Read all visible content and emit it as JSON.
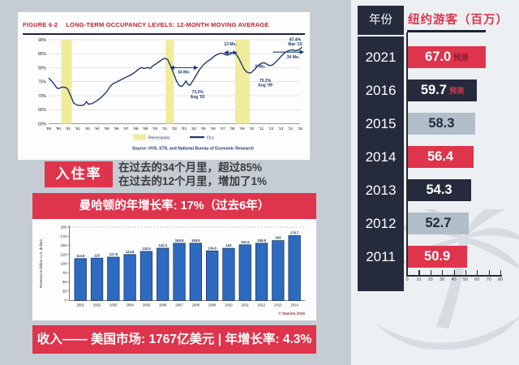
{
  "colors": {
    "red": "#de344c",
    "navy": "#252a3c",
    "gray": "#b0bfc9",
    "blue_bar": "#2e6abf",
    "blue_bar_border": "#173a66",
    "line_navy": "#1d3a70",
    "band_yellow": "#f1ec9b",
    "title_red": "#c41f2e",
    "bg_left": "#c6ccd4",
    "bg_right": "#edf0f3"
  },
  "sections": {
    "occupancy": {
      "badge": "入住率",
      "line1": "在过去的34个月里，超过85%",
      "line2": "在过去的12个月里，增加了1%"
    },
    "manhattan_banner": "曼哈顿的年增长率: 17%（过去6年）",
    "revenue_banner": "收入—— 美国市场: 1767亿美元 | 年增长率: 4.3%"
  },
  "chart_data": [
    {
      "id": "occupancy_line",
      "type": "line",
      "figure_label": "FIGURE 6-2",
      "title": "LONG-TERM OCCUPANCY LEVELS: 12-MONTH MOVING AVERAGE",
      "ylim": [
        60,
        90
      ],
      "yticks": [
        90,
        85,
        80,
        75,
        70,
        65,
        60
      ],
      "x_tick_labels": [
        "'89",
        "'90",
        "'91",
        "'92",
        "'93",
        "'94",
        "'95",
        "'96",
        "'97",
        "'98",
        "'99",
        "'00",
        "'01",
        "'02",
        "'03",
        "'04",
        "'05",
        "'06",
        "'07",
        "'08",
        "'09",
        "'10",
        "'11",
        "'12",
        "'13",
        "'14",
        "'15"
      ],
      "legend": {
        "recession_label": "Recessions",
        "line_label": "Occ"
      },
      "source": "Source: HVS, STR, and National Bureau of Economic Research",
      "recessions": [
        [
          1990.3,
          1991.4
        ],
        [
          2001.1,
          2001.95
        ],
        [
          2008.3,
          2009.8
        ]
      ],
      "series": [
        {
          "name": "Occ",
          "points": [
            [
              1989.0,
              76.3
            ],
            [
              1989.4,
              74.9
            ],
            [
              1989.8,
              73.0
            ],
            [
              1990.0,
              72.5
            ],
            [
              1990.4,
              73.1
            ],
            [
              1990.8,
              72.9
            ],
            [
              1991.0,
              72.2
            ],
            [
              1991.3,
              69.8
            ],
            [
              1991.6,
              67.3
            ],
            [
              1992.0,
              66.6
            ],
            [
              1992.4,
              66.5
            ],
            [
              1992.7,
              66.8
            ],
            [
              1992.9,
              67.9
            ],
            [
              1993.1,
              67.0
            ],
            [
              1993.5,
              67.2
            ],
            [
              1994.0,
              68.2
            ],
            [
              1994.5,
              69.6
            ],
            [
              1995.0,
              71.4
            ],
            [
              1995.3,
              73.0
            ],
            [
              1995.6,
              74.2
            ],
            [
              1996.0,
              74.8
            ],
            [
              1996.5,
              75.7
            ],
            [
              1997.0,
              76.6
            ],
            [
              1997.5,
              77.4
            ],
            [
              1998.0,
              78.6
            ],
            [
              1998.3,
              79.5
            ],
            [
              1998.6,
              80.1
            ],
            [
              1998.9,
              79.7
            ],
            [
              1999.2,
              80.1
            ],
            [
              1999.5,
              79.8
            ],
            [
              1999.8,
              80.7
            ],
            [
              2000.2,
              81.6
            ],
            [
              2000.6,
              82.6
            ],
            [
              2001.0,
              83.4
            ],
            [
              2001.3,
              83.0
            ],
            [
              2001.6,
              80.8
            ],
            [
              2001.9,
              78.2
            ],
            [
              2002.2,
              75.5
            ],
            [
              2002.5,
              73.6
            ],
            [
              2002.8,
              73.3
            ],
            [
              2003.0,
              74.2
            ],
            [
              2003.2,
              75.3
            ],
            [
              2003.4,
              74.1
            ],
            [
              2003.6,
              73.7
            ],
            [
              2003.9,
              75.2
            ],
            [
              2004.2,
              77.0
            ],
            [
              2004.6,
              79.3
            ],
            [
              2005.0,
              81.0
            ],
            [
              2005.4,
              82.2
            ],
            [
              2005.8,
              83.1
            ],
            [
              2006.2,
              84.3
            ],
            [
              2006.6,
              85.0
            ],
            [
              2006.9,
              85.2
            ],
            [
              2007.2,
              84.8
            ],
            [
              2007.5,
              84.5
            ],
            [
              2007.8,
              84.9
            ],
            [
              2008.1,
              85.4
            ],
            [
              2008.3,
              85.2
            ],
            [
              2008.6,
              83.8
            ],
            [
              2008.9,
              81.8
            ],
            [
              2009.2,
              79.6
            ],
            [
              2009.5,
              78.4
            ],
            [
              2009.9,
              78.1
            ],
            [
              2010.3,
              79.4
            ],
            [
              2010.7,
              80.9
            ],
            [
              2011.0,
              81.6
            ],
            [
              2011.3,
              81.8
            ],
            [
              2011.6,
              81.2
            ],
            [
              2011.9,
              80.7
            ],
            [
              2012.2,
              81.1
            ],
            [
              2012.6,
              82.4
            ],
            [
              2013.0,
              83.9
            ],
            [
              2013.4,
              85.3
            ],
            [
              2013.8,
              86.1
            ],
            [
              2014.2,
              86.4
            ],
            [
              2014.5,
              86.1
            ],
            [
              2014.8,
              86.3
            ],
            [
              2015.0,
              86.7
            ],
            [
              2015.2,
              87.3
            ]
          ]
        }
      ],
      "arrows": [
        {
          "x1": 2001.6,
          "x2": 2004.4,
          "y": 80.0,
          "both": true
        },
        {
          "x1": 2007.2,
          "x2": 2008.45,
          "y": 85.4,
          "both": true
        },
        {
          "x1": 2012.2,
          "x2": 2015.35,
          "y": 85.6,
          "both": false
        }
      ],
      "annotations": [
        {
          "lines": [
            "34 Mo."
          ],
          "x": 2003.0,
          "y": 78.0
        },
        {
          "lines": [
            "73.2%",
            "Aug '02"
          ],
          "x": 2004.4,
          "y": 70.8
        },
        {
          "lines": [
            "13 Mo."
          ],
          "x": 2007.8,
          "y": 87.9
        },
        {
          "lines": [
            "6 Mo."
          ],
          "x": 2010.9,
          "y": 80.0
        },
        {
          "lines": [
            "75.2%",
            "Aug '09"
          ],
          "x": 2011.4,
          "y": 75.0
        },
        {
          "lines": [
            "87.4%",
            "Mar-'15"
          ],
          "x": 2014.5,
          "y": 89.6
        },
        {
          "lines": [
            "34 Mo."
          ],
          "x": 2014.3,
          "y": 83.3
        }
      ]
    },
    {
      "id": "us_hotel_revenue",
      "type": "bar",
      "categories": [
        "2001",
        "2002",
        "2003",
        "2004",
        "2005",
        "2006",
        "2007",
        "2008",
        "2009",
        "2010",
        "2011",
        "2012",
        "2013",
        "2014"
      ],
      "values": [
        113.8,
        115,
        117.8,
        124.8,
        133.5,
        142.3,
        155.8,
        155.8,
        134.8,
        142,
        151.5,
        155.8,
        163,
        176.7
      ],
      "value_labels": [
        "113.8",
        "115",
        "117.8",
        "124.8",
        "133.5",
        "142.3",
        "155.8",
        "155.8",
        "134.8",
        "142",
        "151.5",
        "155.8",
        "163",
        "176.7"
      ],
      "ylabel": "Revenue in billion U.S. dollars",
      "yticks": [
        0,
        25,
        50,
        75,
        100,
        125,
        150,
        175,
        200
      ],
      "ylim": [
        0,
        200
      ],
      "credit": "© Statista 2016"
    },
    {
      "id": "nyc_visitors",
      "type": "bar-horizontal",
      "col_header": "年份",
      "value_header": "纽约游客（百万）",
      "xlim": [
        0,
        80
      ],
      "axis_ticks": [
        0,
        10,
        20,
        30,
        40,
        50,
        60,
        70,
        80
      ],
      "rows": [
        {
          "year": "2021",
          "value": 67.0,
          "label": "67.0",
          "suffix": "预测",
          "color": "red",
          "suffix_color": "#8e1b2c"
        },
        {
          "year": "2016",
          "value": 59.7,
          "label": "59.7",
          "suffix": "预测",
          "color": "navy",
          "suffix_color": "#de344c"
        },
        {
          "year": "2015",
          "value": 58.3,
          "label": "58.3",
          "suffix": "",
          "color": "gray",
          "suffix_color": ""
        },
        {
          "year": "2014",
          "value": 56.4,
          "label": "56.4",
          "suffix": "",
          "color": "red",
          "suffix_color": ""
        },
        {
          "year": "2013",
          "value": 54.3,
          "label": "54.3",
          "suffix": "",
          "color": "navy",
          "suffix_color": ""
        },
        {
          "year": "2012",
          "value": 52.7,
          "label": "52.7",
          "suffix": "",
          "color": "gray",
          "suffix_color": ""
        },
        {
          "year": "2011",
          "value": 50.9,
          "label": "50.9",
          "suffix": "",
          "color": "red",
          "suffix_color": ""
        }
      ]
    }
  ]
}
